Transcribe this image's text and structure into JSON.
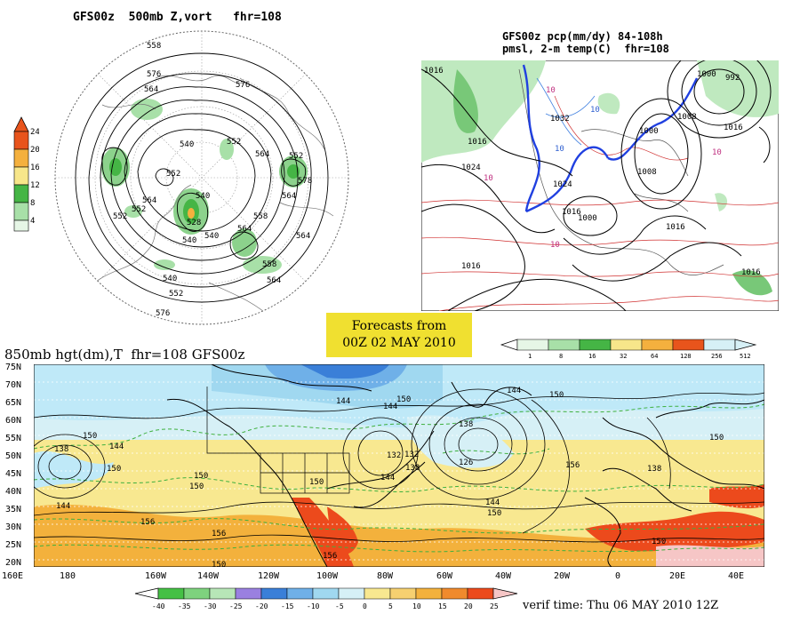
{
  "top_left": {
    "title": "GFS00z  500mb Z,vort   fhr=108",
    "colorbar_ticks": [
      "24",
      "20",
      "16",
      "12",
      "8",
      "4"
    ],
    "contour_labels": [
      "558",
      "576",
      "564",
      "576",
      "540",
      "552",
      "564",
      "552",
      "564",
      "552",
      "552",
      "564",
      "540",
      "528",
      "540",
      "552",
      "564",
      "540",
      "552",
      "564",
      "576",
      "558",
      "578",
      "540",
      "564",
      "558"
    ]
  },
  "top_right": {
    "title_line1": "GFS00z pcp(mm/dy) 84-108h",
    "title_line2": "pmsl, 2-m temp(C)  fhr=108",
    "colorbar_ticks": [
      "1",
      "8",
      "16",
      "32",
      "64",
      "128",
      "256",
      "512"
    ],
    "contour_labels": [
      "1016",
      "1016",
      "1024",
      "1032",
      "1008",
      "1000",
      "992",
      "1000",
      "1008",
      "1016",
      "1024",
      "1016",
      "1000",
      "1016",
      "1016",
      "1016",
      "10",
      "10",
      "10",
      "10",
      "10",
      "10"
    ]
  },
  "forecast_box": {
    "line1": "Forecasts from",
    "line2": "00Z 02 MAY 2010"
  },
  "bottom": {
    "title": "850mb hgt(dm),T  fhr=108 GFS00z",
    "lat_labels": [
      "75N",
      "70N",
      "65N",
      "60N",
      "55N",
      "50N",
      "45N",
      "40N",
      "35N",
      "30N",
      "25N",
      "20N"
    ],
    "lon_labels": [
      "160E",
      "180",
      "160W",
      "140W",
      "120W",
      "100W",
      "80W",
      "60W",
      "40W",
      "20W",
      "0",
      "20E",
      "40E"
    ],
    "colorbar_ticks": [
      "-40",
      "-35",
      "-30",
      "-25",
      "-20",
      "-15",
      "-10",
      "-5",
      "0",
      "5",
      "10",
      "15",
      "20",
      "25"
    ],
    "verif_time": "verif time: Thu 06 MAY 2010 12Z",
    "contour_labels": [
      "138",
      "144",
      "150",
      "144",
      "150",
      "156",
      "144",
      "144",
      "150",
      "138",
      "132",
      "126",
      "144",
      "150",
      "144",
      "132",
      "138",
      "150",
      "156",
      "150",
      "144",
      "150",
      "156",
      "150",
      "138",
      "150",
      "150",
      "156",
      "150"
    ]
  },
  "colors": {
    "forecast_box": "#f0e030",
    "cold_deep": "#3a7fd8",
    "cold_light": "#bfe9f8",
    "warm_yellow": "#f8e890",
    "warm_orange": "#f3b13c",
    "hot_red": "#ec4a1c",
    "precip_green": "#78c878",
    "vort_green": "#8cd28c"
  }
}
